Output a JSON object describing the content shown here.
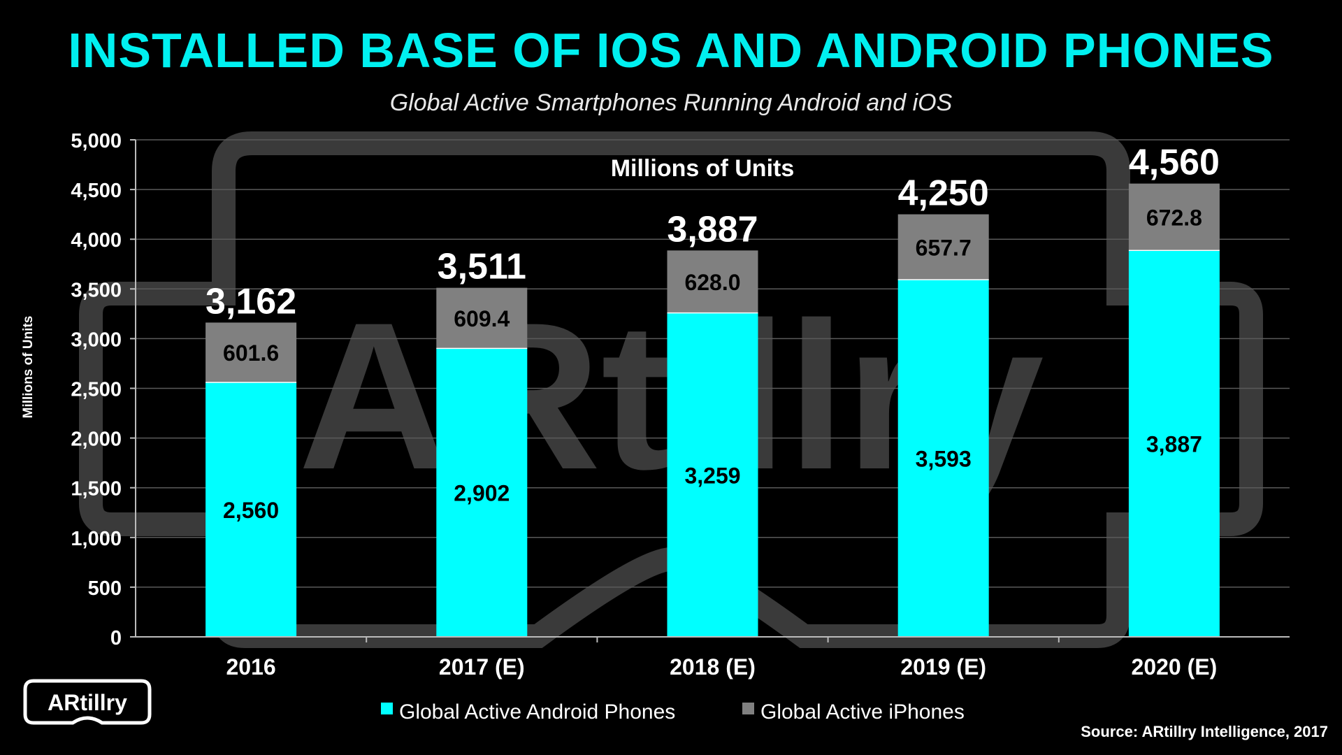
{
  "title": "INSTALLED BASE OF IOS AND ANDROID PHONES",
  "subtitle": "Global Active Smartphones Running Android and iOS",
  "source": "Source: ARtillry Intelligence, 2017",
  "logo_text": "ARtillry",
  "watermark_text": "ARtillry",
  "colors": {
    "android": "#00ffff",
    "iphone": "#808080",
    "title": "#00f0f0",
    "background": "#000000"
  },
  "chart_data": {
    "type": "bar",
    "stacked": true,
    "categories": [
      "2016",
      "2017 (E)",
      "2018 (E)",
      "2019 (E)",
      "2020 (E)"
    ],
    "series": [
      {
        "name": "Global Active Android Phones",
        "values": [
          2560,
          2902,
          3259,
          3593,
          3887
        ],
        "labels": [
          "2,560",
          "2,902",
          "3,259",
          "3,593",
          "3,887"
        ]
      },
      {
        "name": "Global Active iPhones",
        "values": [
          601.6,
          609.4,
          628.0,
          657.7,
          672.8
        ],
        "labels": [
          "601.6",
          "609.4",
          "628.0",
          "657.7",
          "672.8"
        ]
      }
    ],
    "totals": [
      "3,162",
      "3,511",
      "3,887",
      "4,250",
      "4,560"
    ],
    "ylabel": "Millions of Units",
    "annotation": "Millions of Units",
    "ylim": [
      0,
      5000
    ],
    "yticks": [
      0,
      500,
      1000,
      1500,
      2000,
      2500,
      3000,
      3500,
      4000,
      4500,
      5000
    ],
    "ytick_labels": [
      "0",
      "500",
      "1,000",
      "1,500",
      "2,000",
      "2,500",
      "3,000",
      "3,500",
      "4,000",
      "4,500",
      "5,000"
    ],
    "grid": true,
    "legend_position": "bottom-center"
  }
}
